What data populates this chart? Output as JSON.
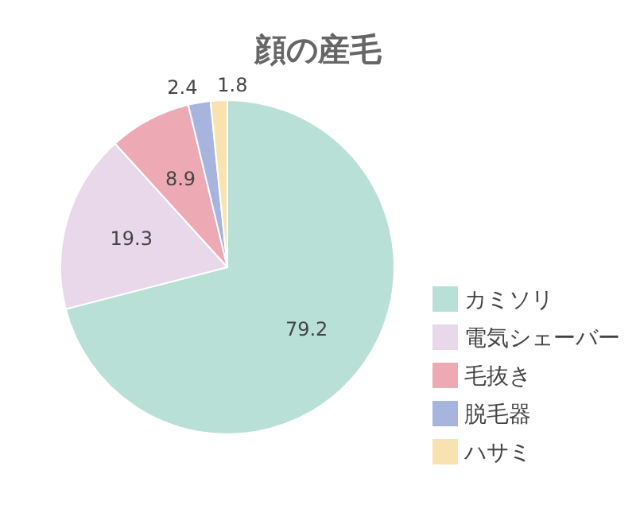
{
  "chart_data": {
    "type": "pie",
    "title": "顔の産毛",
    "categories": [
      "カミソリ",
      "電気シェーバー",
      "毛抜き",
      "脱毛器",
      "ハサミ"
    ],
    "values": [
      79.2,
      19.3,
      8.9,
      2.4,
      1.8
    ],
    "colors": [
      "#b9e0d7",
      "#e8d8ea",
      "#eeaab4",
      "#a6b4de",
      "#f7e2b0"
    ],
    "data_labels": true,
    "legend": "right"
  }
}
